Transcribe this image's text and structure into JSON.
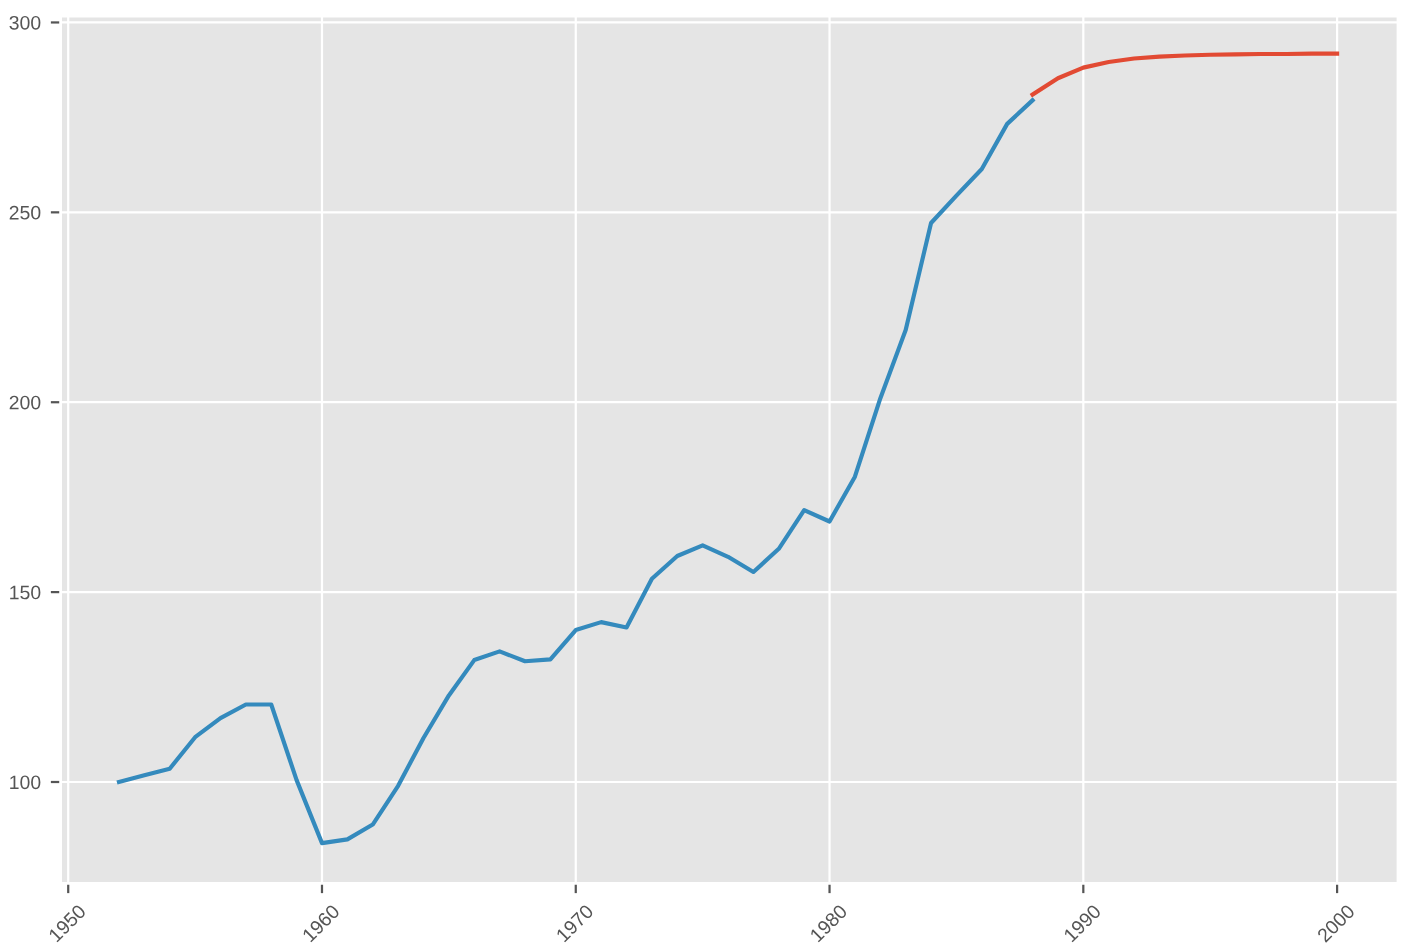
{
  "chart_data": {
    "type": "line",
    "series": [
      {
        "color": "#348abd",
        "x": [
          1952,
          1953,
          1954,
          1955,
          1956,
          1957,
          1958,
          1959,
          1960,
          1961,
          1962,
          1963,
          1964,
          1965,
          1966,
          1967,
          1968,
          1969,
          1970,
          1971,
          1972,
          1973,
          1974,
          1975,
          1976,
          1977,
          1978,
          1979,
          1980,
          1981,
          1982,
          1983,
          1984,
          1985,
          1986,
          1987,
          1988
        ],
        "values": [
          100,
          101.8,
          103.5,
          111.8,
          116.8,
          120.4,
          120.4,
          100.5,
          83.9,
          84.9,
          88.8,
          99,
          111.6,
          122.8,
          132.1,
          134.4,
          131.8,
          132.3,
          140,
          142.1,
          140.7,
          153.5,
          159.5,
          162.3,
          159.3,
          155.3,
          161.4,
          171.6,
          168.6,
          180.4,
          201,
          219,
          247.2,
          254.4,
          261.4,
          273.3,
          279.5
        ]
      },
      {
        "color": "#e24a33",
        "x": [
          1988,
          1989,
          1990,
          1991,
          1992,
          1993,
          1994,
          1995,
          1996,
          1997,
          1998,
          1999,
          2000
        ],
        "values": [
          281,
          285.3,
          288.1,
          289.6,
          290.5,
          291,
          291.3,
          291.5,
          291.6,
          291.7,
          291.7,
          291.8,
          291.8
        ]
      }
    ],
    "xlim": [
      1949.7,
      2002.4
    ],
    "ylim": [
      73.3,
      301.7
    ],
    "xticks": [
      1950,
      1960,
      1970,
      1980,
      1990,
      2000
    ],
    "yticks": [
      100,
      150,
      200,
      250,
      300
    ],
    "grid": true
  }
}
